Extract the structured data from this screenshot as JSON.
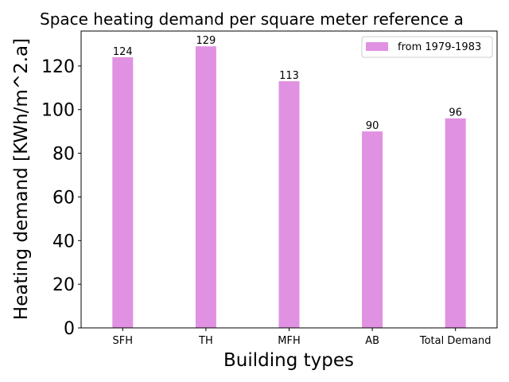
{
  "chart_data": {
    "type": "bar",
    "title": "Space heating demand per square meter reference a",
    "xlabel": "Building types",
    "ylabel": "Heating demand [KWh/m^2.a]",
    "categories": [
      "SFH",
      "TH",
      "MFH",
      "AB",
      "Total Demand"
    ],
    "series": [
      {
        "name": "from 1979-1983",
        "values": [
          124,
          129,
          113,
          90,
          96
        ],
        "color": "#e191e1"
      }
    ],
    "ylim": [
      0,
      136
    ],
    "yticks": [
      0,
      20,
      40,
      60,
      80,
      100,
      120
    ],
    "grid": false,
    "legend_position": "top-right"
  }
}
